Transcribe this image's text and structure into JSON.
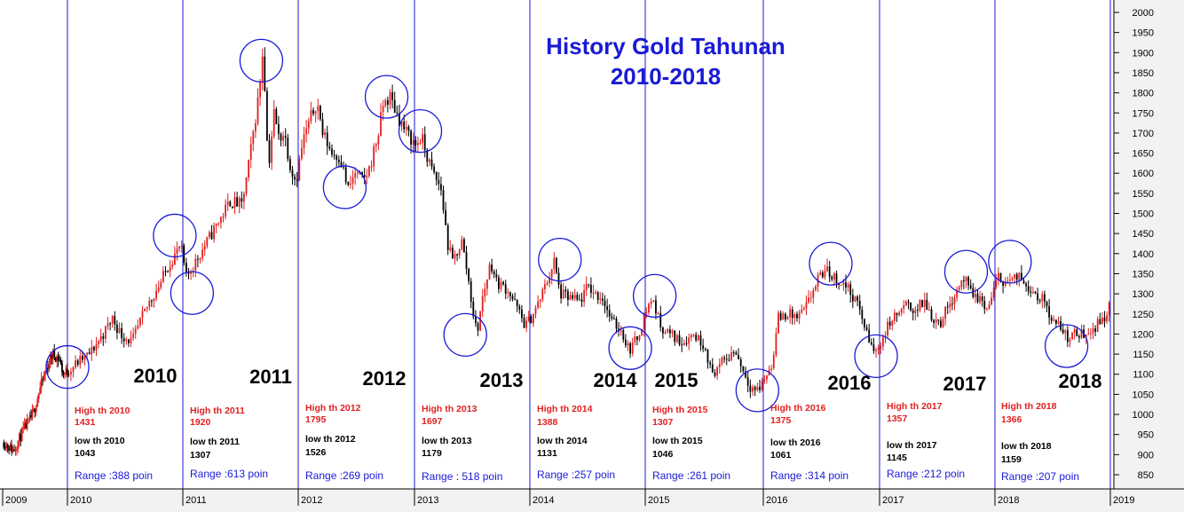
{
  "chart_data": {
    "type": "candlestick",
    "title": [
      "History Gold Tahunan",
      "2010-2018"
    ],
    "y_axis": {
      "position": "right",
      "range": [
        820,
        2010
      ],
      "ticks": [
        850,
        900,
        950,
        1000,
        1050,
        1100,
        1150,
        1200,
        1250,
        1300,
        1350,
        1400,
        1450,
        1500,
        1550,
        1600,
        1650,
        1700,
        1750,
        1800,
        1850,
        1900,
        1950,
        2000
      ]
    },
    "x_axis": {
      "ticks": [
        "2009",
        "2010",
        "2011",
        "2012",
        "2013",
        "2014",
        "2015",
        "2016",
        "2017",
        "2018",
        "2019"
      ]
    },
    "grid": false,
    "colors": {
      "up": "#e02020",
      "down": "#000000",
      "separator": "#1a1ad6",
      "circle": "#1a1ad6",
      "title": "#1a1ad6"
    },
    "price_path": [
      [
        2009.0,
        930
      ],
      [
        2009.15,
        910
      ],
      [
        2009.3,
        960
      ],
      [
        2009.45,
        1000
      ],
      [
        2009.55,
        1060
      ],
      [
        2009.65,
        1110
      ],
      [
        2009.75,
        1150
      ],
      [
        2009.85,
        1140
      ],
      [
        2009.92,
        1100
      ],
      [
        2010.0,
        1110
      ],
      [
        2010.08,
        1130
      ],
      [
        2010.18,
        1150
      ],
      [
        2010.3,
        1200
      ],
      [
        2010.38,
        1240
      ],
      [
        2010.45,
        1200
      ],
      [
        2010.55,
        1180
      ],
      [
        2010.62,
        1230
      ],
      [
        2010.7,
        1280
      ],
      [
        2010.8,
        1330
      ],
      [
        2010.88,
        1380
      ],
      [
        2010.93,
        1400
      ],
      [
        2010.97,
        1420
      ],
      [
        2011.02,
        1340
      ],
      [
        2011.1,
        1380
      ],
      [
        2011.2,
        1430
      ],
      [
        2011.3,
        1480
      ],
      [
        2011.4,
        1530
      ],
      [
        2011.5,
        1520
      ],
      [
        2011.55,
        1600
      ],
      [
        2011.6,
        1700
      ],
      [
        2011.65,
        1800
      ],
      [
        2011.68,
        1900
      ],
      [
        2011.7,
        1820
      ],
      [
        2011.73,
        1610
      ],
      [
        2011.78,
        1750
      ],
      [
        2011.82,
        1690
      ],
      [
        2011.87,
        1700
      ],
      [
        2011.92,
        1620
      ],
      [
        2011.97,
        1580
      ],
      [
        2012.03,
        1680
      ],
      [
        2012.1,
        1740
      ],
      [
        2012.15,
        1780
      ],
      [
        2012.2,
        1700
      ],
      [
        2012.28,
        1650
      ],
      [
        2012.35,
        1640
      ],
      [
        2012.42,
        1560
      ],
      [
        2012.48,
        1600
      ],
      [
        2012.55,
        1580
      ],
      [
        2012.6,
        1610
      ],
      [
        2012.68,
        1700
      ],
      [
        2012.72,
        1770
      ],
      [
        2012.78,
        1790
      ],
      [
        2012.85,
        1740
      ],
      [
        2012.9,
        1710
      ],
      [
        2012.95,
        1690
      ],
      [
        2013.0,
        1670
      ],
      [
        2013.05,
        1690
      ],
      [
        2013.1,
        1640
      ],
      [
        2013.15,
        1600
      ],
      [
        2013.22,
        1560
      ],
      [
        2013.28,
        1420
      ],
      [
        2013.32,
        1380
      ],
      [
        2013.4,
        1430
      ],
      [
        2013.45,
        1350
      ],
      [
        2013.5,
        1250
      ],
      [
        2013.53,
        1200
      ],
      [
        2013.58,
        1290
      ],
      [
        2013.65,
        1380
      ],
      [
        2013.7,
        1330
      ],
      [
        2013.8,
        1310
      ],
      [
        2013.87,
        1270
      ],
      [
        2013.95,
        1220
      ],
      [
        2014.0,
        1240
      ],
      [
        2014.07,
        1280
      ],
      [
        2014.15,
        1340
      ],
      [
        2014.2,
        1380
      ],
      [
        2014.25,
        1300
      ],
      [
        2014.33,
        1290
      ],
      [
        2014.42,
        1280
      ],
      [
        2014.5,
        1320
      ],
      [
        2014.55,
        1300
      ],
      [
        2014.62,
        1290
      ],
      [
        2014.7,
        1230
      ],
      [
        2014.78,
        1210
      ],
      [
        2014.85,
        1160
      ],
      [
        2014.92,
        1190
      ],
      [
        2015.0,
        1260
      ],
      [
        2015.05,
        1290
      ],
      [
        2015.12,
        1220
      ],
      [
        2015.2,
        1200
      ],
      [
        2015.3,
        1180
      ],
      [
        2015.4,
        1200
      ],
      [
        2015.5,
        1170
      ],
      [
        2015.55,
        1100
      ],
      [
        2015.65,
        1130
      ],
      [
        2015.75,
        1160
      ],
      [
        2015.82,
        1110
      ],
      [
        2015.88,
        1070
      ],
      [
        2015.95,
        1060
      ],
      [
        2016.0,
        1090
      ],
      [
        2016.06,
        1120
      ],
      [
        2016.12,
        1240
      ],
      [
        2016.2,
        1250
      ],
      [
        2016.28,
        1240
      ],
      [
        2016.35,
        1260
      ],
      [
        2016.45,
        1330
      ],
      [
        2016.52,
        1360
      ],
      [
        2016.6,
        1340
      ],
      [
        2016.7,
        1320
      ],
      [
        2016.75,
        1300
      ],
      [
        2016.82,
        1260
      ],
      [
        2016.88,
        1200
      ],
      [
        2016.95,
        1150
      ],
      [
        2017.0,
        1180
      ],
      [
        2017.08,
        1230
      ],
      [
        2017.15,
        1250
      ],
      [
        2017.22,
        1270
      ],
      [
        2017.3,
        1260
      ],
      [
        2017.38,
        1280
      ],
      [
        2017.45,
        1240
      ],
      [
        2017.52,
        1230
      ],
      [
        2017.6,
        1280
      ],
      [
        2017.68,
        1320
      ],
      [
        2017.72,
        1340
      ],
      [
        2017.78,
        1300
      ],
      [
        2017.85,
        1290
      ],
      [
        2017.92,
        1260
      ],
      [
        2017.97,
        1300
      ],
      [
        2018.02,
        1340
      ],
      [
        2018.1,
        1330
      ],
      [
        2018.2,
        1340
      ],
      [
        2018.28,
        1320
      ],
      [
        2018.35,
        1300
      ],
      [
        2018.42,
        1280
      ],
      [
        2018.5,
        1230
      ],
      [
        2018.58,
        1210
      ],
      [
        2018.62,
        1190
      ],
      [
        2018.68,
        1200
      ],
      [
        2018.75,
        1200
      ],
      [
        2018.82,
        1210
      ],
      [
        2018.9,
        1230
      ],
      [
        2018.95,
        1250
      ],
      [
        2019.0,
        1280
      ]
    ],
    "year_labels": [
      "2010",
      "2011",
      "2012",
      "2013",
      "2014",
      "2015",
      "2016",
      "2017",
      "2018"
    ],
    "annual_stats": [
      {
        "high_label": "High th 2010",
        "high": "1431",
        "low_label": "low th 2010",
        "low": "1043",
        "range": "Range :388 poin"
      },
      {
        "high_label": "High th 2011",
        "high": "1920",
        "low_label": "low th 2011",
        "low": "1307",
        "range": "Range :613 poin"
      },
      {
        "high_label": "High th 2012",
        "high": "1795",
        "low_label": "low th 2012",
        "low": "1526",
        "range": "Range :269  poin"
      },
      {
        "high_label": "High th 2013",
        "high": "1697",
        "low_label": "low th 2013",
        "low": "1179",
        "range": "Range : 518  poin"
      },
      {
        "high_label": "High th 2014",
        "high": "1388",
        "low_label": "low th 2014",
        "low": "1131",
        "range": "Range :257 poin"
      },
      {
        "high_label": "High th 2015",
        "high": "1307",
        "low_label": "low th 2015",
        "low": "1046",
        "range": "Range :261 poin"
      },
      {
        "high_label": "High th 2016",
        "high": "1375",
        "low_label": "low th 2016",
        "low": "1061",
        "range": "Range :314 poin"
      },
      {
        "high_label": "High th 2017",
        "high": "1357",
        "low_label": "low th 2017",
        "low": "1145",
        "range": "Range :212 poin"
      },
      {
        "high_label": "High th 2018",
        "high": "1366",
        "low_label": "low th 2018",
        "low": "1159",
        "range": "Range :207 poin"
      }
    ],
    "circled_extremes": [
      {
        "date": 2010.0,
        "price": 1118
      },
      {
        "date": 2010.93,
        "price": 1445
      },
      {
        "date": 2011.08,
        "price": 1302
      },
      {
        "date": 2011.68,
        "price": 1880
      },
      {
        "date": 2012.4,
        "price": 1565
      },
      {
        "date": 2012.76,
        "price": 1790
      },
      {
        "date": 2013.05,
        "price": 1705
      },
      {
        "date": 2013.44,
        "price": 1198
      },
      {
        "date": 2014.26,
        "price": 1385
      },
      {
        "date": 2014.87,
        "price": 1165
      },
      {
        "date": 2015.08,
        "price": 1295
      },
      {
        "date": 2015.95,
        "price": 1060
      },
      {
        "date": 2016.58,
        "price": 1375
      },
      {
        "date": 2016.97,
        "price": 1145
      },
      {
        "date": 2017.75,
        "price": 1355
      },
      {
        "date": 2018.13,
        "price": 1380
      },
      {
        "date": 2018.62,
        "price": 1170
      }
    ]
  }
}
